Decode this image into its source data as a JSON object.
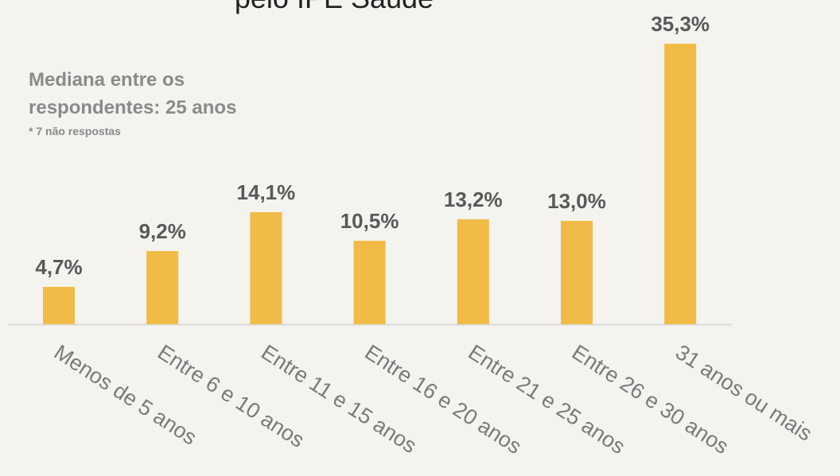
{
  "chart_data": {
    "type": "bar",
    "title": "pelo IPE Saúde",
    "annotations": [
      "Mediana entre os",
      "respondentes: 25 anos",
      "* 7 não respostas"
    ],
    "categories": [
      "Menos de 5 anos",
      "Entre 6 e 10 anos",
      "Entre 11 e 15 anos",
      "Entre 16 e 20 anos",
      "Entre 21 e 25 anos",
      "Entre 26 e 30 anos",
      "31 anos ou mais"
    ],
    "values": [
      4.7,
      9.2,
      14.1,
      10.5,
      13.2,
      13.0,
      35.3
    ],
    "value_labels": [
      "4,7%",
      "9,2%",
      "14,1%",
      "10,5%",
      "13,2%",
      "13,0%",
      "35,3%"
    ],
    "color": "#f0bb47"
  }
}
